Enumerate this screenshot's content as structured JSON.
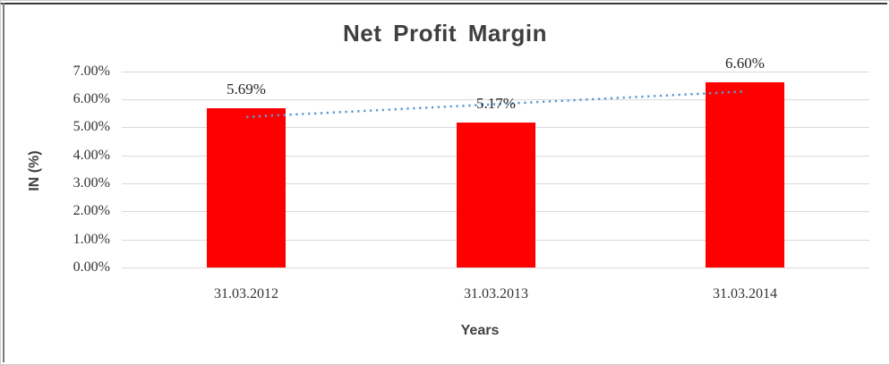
{
  "chart_data": {
    "type": "bar",
    "title": "Net Profit Margin",
    "xlabel": "Years",
    "ylabel": "IN (%)",
    "categories": [
      "31.03.2012",
      "31.03.2013",
      "31.03.2014"
    ],
    "values": [
      5.69,
      5.17,
      6.6
    ],
    "data_labels": [
      "5.69%",
      "5.17%",
      "6.60%"
    ],
    "ylim": [
      0,
      7
    ],
    "ytick_step": 1,
    "ytick_labels": [
      "0.00%",
      "1.00%",
      "2.00%",
      "3.00%",
      "4.00%",
      "5.00%",
      "6.00%",
      "7.00%"
    ],
    "bar_color": "#ff0000",
    "gridlines": true,
    "gridline_color": "#d9d9d9",
    "legend": "none",
    "trendline": {
      "type": "linear",
      "style": "dotted",
      "color": "#5b9bd5",
      "start_value": 5.37,
      "end_value": 6.28
    }
  }
}
